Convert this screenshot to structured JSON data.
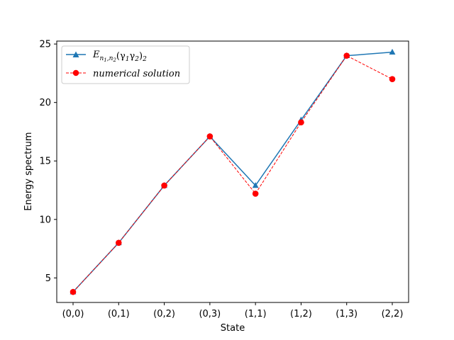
{
  "chart_data": {
    "type": "line",
    "categories": [
      "(0,0)",
      "(0,1)",
      "(0,2)",
      "(0,3)",
      "(1,1)",
      "(1,2)",
      "(1,3)",
      "(2,2)"
    ],
    "xlabel": "State",
    "ylabel": "Energy spectrum",
    "ylim": [
      2.9,
      25.25
    ],
    "yticks": [
      5,
      10,
      15,
      20,
      25
    ],
    "grid": false,
    "legend_position": "upper-left",
    "series": [
      {
        "name": "E_{n1,n2}(γ1γ2)2",
        "legend": {
          "main": "E",
          "sub": "n",
          "sub2": "1",
          "sub3": ",n",
          "sub4": "2",
          "rest": "(γ",
          "g1": "1",
          "mid": "γ",
          "g2": "2",
          "close": ")",
          "tail": "2"
        },
        "values": [
          3.8,
          8.0,
          12.9,
          17.1,
          12.9,
          18.5,
          24.0,
          24.3
        ],
        "color": "#1f77b4",
        "marker": "triangle",
        "line_style": "solid"
      },
      {
        "name": "numerical solution",
        "values": [
          3.8,
          8.0,
          12.9,
          17.1,
          12.2,
          18.3,
          24.0,
          22.0
        ],
        "color": "#ff0000",
        "marker": "circle",
        "line_style": "dashed"
      }
    ]
  }
}
